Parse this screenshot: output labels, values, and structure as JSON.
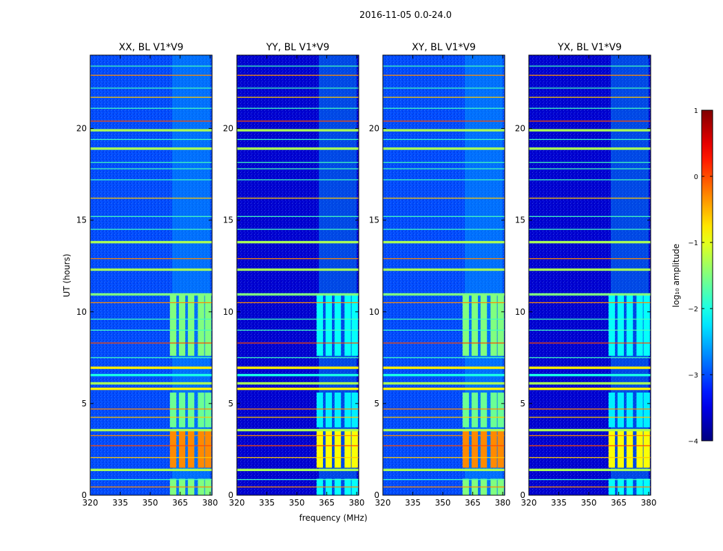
{
  "chart_data": {
    "type": "heatmap",
    "title": "2016-11-05 0.0-24.0",
    "xlabel": "frequency (MHz)",
    "ylabel": "UT (hours)",
    "xlim": [
      320,
      381
    ],
    "ylim": [
      0,
      24
    ],
    "xticks": [
      320,
      335,
      350,
      365,
      380
    ],
    "yticks": [
      0,
      5,
      10,
      15,
      20
    ],
    "panels": [
      {
        "title": "XX, BL V1*V9",
        "pol": "XX",
        "base": -3.0
      },
      {
        "title": "YY, BL V1*V9",
        "pol": "YY",
        "base": -3.6
      },
      {
        "title": "XY, BL V1*V9",
        "pol": "XY",
        "base": -3.0
      },
      {
        "title": "YX, BL V1*V9",
        "pol": "YX",
        "base": -3.6
      }
    ],
    "signal_freq_range_mhz": [
      361,
      380
    ],
    "signal_channel_mhz": [
      361.5,
      366.0,
      370.5,
      375.5,
      379.0
    ],
    "signal_time_blocks": [
      {
        "t": [
          0,
          0.9
        ],
        "level": -1.5
      },
      {
        "t": [
          1.5,
          3.5
        ],
        "level": -0.3
      },
      {
        "t": [
          3.7,
          5.6
        ],
        "level": -1.6
      },
      {
        "t": [
          7.6,
          10.9
        ],
        "level": -1.5
      }
    ],
    "rfi_lines": [
      {
        "t": 0.45,
        "level": -0.3,
        "kind": "line"
      },
      {
        "t": 0.85,
        "level": -1.8,
        "kind": "line"
      },
      {
        "t": 1.38,
        "level": -1.3,
        "kind": "band"
      },
      {
        "t": 2.05,
        "level": -0.6,
        "kind": "line"
      },
      {
        "t": 2.7,
        "level": 0.0,
        "kind": "line"
      },
      {
        "t": 3.25,
        "level": -0.3,
        "kind": "line"
      },
      {
        "t": 3.55,
        "level": -1.3,
        "kind": "band"
      },
      {
        "t": 4.25,
        "level": -0.6,
        "kind": "line"
      },
      {
        "t": 4.7,
        "level": -0.3,
        "kind": "line"
      },
      {
        "t": 5.8,
        "level": -0.8,
        "kind": "band"
      },
      {
        "t": 6.1,
        "level": -1.3,
        "kind": "band"
      },
      {
        "t": 6.55,
        "level": -2.0,
        "kind": "band"
      },
      {
        "t": 6.95,
        "level": -0.8,
        "kind": "band"
      },
      {
        "t": 7.5,
        "level": -1.8,
        "kind": "line"
      },
      {
        "t": 8.3,
        "level": 0.0,
        "kind": "line"
      },
      {
        "t": 9.0,
        "level": -1.8,
        "kind": "line"
      },
      {
        "t": 9.6,
        "level": -1.8,
        "kind": "line"
      },
      {
        "t": 10.5,
        "level": -0.3,
        "kind": "line"
      },
      {
        "t": 10.95,
        "level": -1.5,
        "kind": "band"
      },
      {
        "t": 12.3,
        "level": -1.3,
        "kind": "band"
      },
      {
        "t": 12.9,
        "level": -0.3,
        "kind": "line"
      },
      {
        "t": 13.8,
        "level": -1.3,
        "kind": "band"
      },
      {
        "t": 14.5,
        "level": -1.8,
        "kind": "line"
      },
      {
        "t": 15.2,
        "level": -1.8,
        "kind": "line"
      },
      {
        "t": 16.2,
        "level": -0.6,
        "kind": "line"
      },
      {
        "t": 17.2,
        "level": -1.8,
        "kind": "line"
      },
      {
        "t": 17.8,
        "level": -1.8,
        "kind": "line"
      },
      {
        "t": 18.15,
        "level": -1.8,
        "kind": "line"
      },
      {
        "t": 18.9,
        "level": -1.3,
        "kind": "band"
      },
      {
        "t": 19.4,
        "level": -1.8,
        "kind": "line"
      },
      {
        "t": 19.9,
        "level": -1.3,
        "kind": "band"
      },
      {
        "t": 20.4,
        "level": 0.0,
        "kind": "line"
      },
      {
        "t": 21.1,
        "level": -1.8,
        "kind": "line"
      },
      {
        "t": 21.7,
        "level": -0.6,
        "kind": "line"
      },
      {
        "t": 22.2,
        "level": -1.8,
        "kind": "line"
      },
      {
        "t": 22.9,
        "level": -0.3,
        "kind": "line"
      },
      {
        "t": 23.4,
        "level": -1.8,
        "kind": "line"
      }
    ],
    "colorbar": {
      "label": "log₁₀ amplitude",
      "range": [
        -4,
        1
      ],
      "ticks": [
        1,
        0,
        -1,
        -2,
        -3,
        -4
      ],
      "tick_labels": [
        "1",
        "0",
        "−1",
        "−2",
        "−3",
        "−4"
      ],
      "colormap": "jet"
    }
  }
}
